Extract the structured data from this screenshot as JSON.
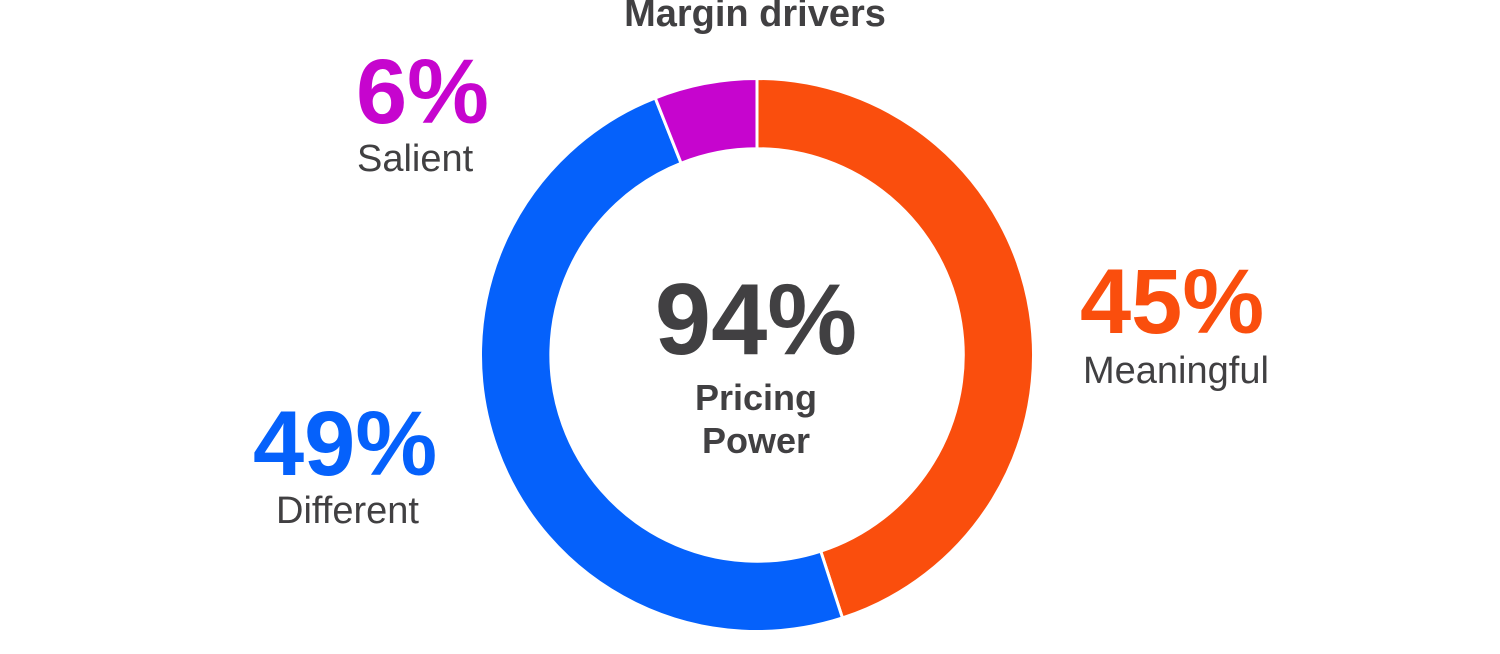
{
  "title": "Margin drivers",
  "colors": {
    "meaningful": "#FA4E0D",
    "different": "#0561FB",
    "salient": "#C605CE",
    "text": "#414042",
    "separator": "#FFFFFF",
    "background": "#FFFFFF"
  },
  "chart_data": {
    "type": "pie",
    "variant": "donut",
    "title": "Margin drivers",
    "units": "percent",
    "direction": "clockwise",
    "start_angle_deg": 0,
    "inner_radius_ratio": 0.746,
    "segments": [
      {
        "label": "Meaningful",
        "value": 45,
        "color": "#FA4E0D"
      },
      {
        "label": "Different",
        "value": 49,
        "color": "#0561FB"
      },
      {
        "label": "Salient",
        "value": 6,
        "color": "#C605CE"
      }
    ],
    "center_text": {
      "value": "94%",
      "label": "Pricing Power"
    },
    "legend": "none",
    "callout_labels": [
      "45% Meaningful",
      "49% Different",
      "6% Salient"
    ]
  },
  "center_text": {
    "value": "94%",
    "line1": "Pricing",
    "line2": "Power"
  },
  "callouts": {
    "salient": {
      "pct": "6%",
      "name": "Salient"
    },
    "different": {
      "pct": "49%",
      "name": "Different"
    },
    "meaningful": {
      "pct": "45%",
      "name": "Meaningful"
    }
  }
}
